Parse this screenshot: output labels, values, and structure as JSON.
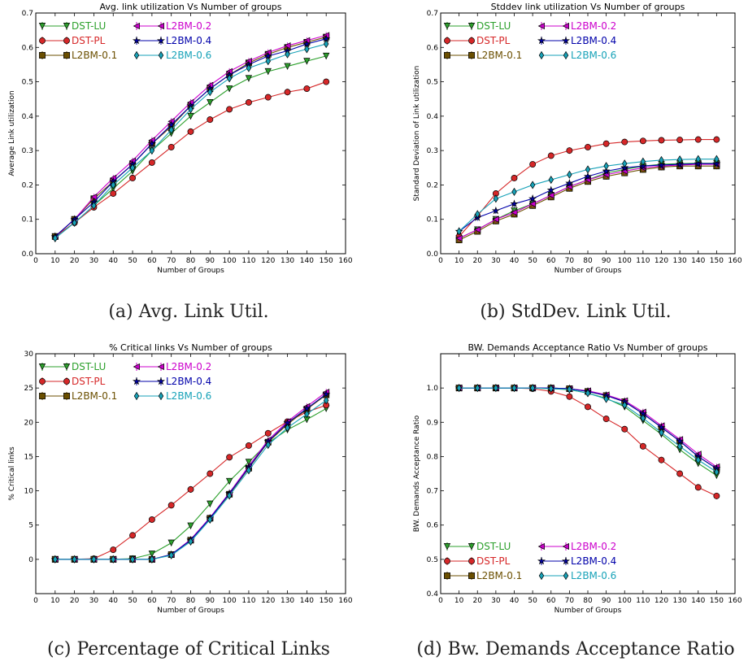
{
  "chart_data": [
    {
      "id": "a",
      "type": "line",
      "caption": "(a) Avg. Link Util.",
      "title": "Avg. link utilization Vs Number of groups",
      "xlabel": "Number of Groups",
      "ylabel": "Average Link utilization",
      "xlim": [
        0,
        160
      ],
      "ylim": [
        0,
        0.7
      ],
      "xticks": [
        "0",
        "10",
        "20",
        "30",
        "40",
        "50",
        "60",
        "70",
        "80",
        "90",
        "100",
        "110",
        "120",
        "130",
        "140",
        "150",
        "160"
      ],
      "yticks": [
        "0.0",
        "0.1",
        "0.2",
        "0.3",
        "0.4",
        "0.5",
        "0.6",
        "0.7"
      ],
      "legend_position": "top-left",
      "x": [
        10,
        20,
        30,
        40,
        50,
        60,
        70,
        80,
        90,
        100,
        110,
        120,
        130,
        140,
        150
      ],
      "series": [
        {
          "name": "DST-LU",
          "color": "#2ca02c",
          "marker": "triangle-down",
          "values": [
            0.05,
            0.09,
            0.14,
            0.19,
            0.24,
            0.3,
            0.35,
            0.4,
            0.44,
            0.48,
            0.51,
            0.53,
            0.545,
            0.56,
            0.575
          ]
        },
        {
          "name": "DST-PL",
          "color": "#d62728",
          "marker": "circle",
          "values": [
            0.05,
            0.09,
            0.135,
            0.175,
            0.22,
            0.265,
            0.31,
            0.355,
            0.39,
            0.42,
            0.44,
            0.455,
            0.47,
            0.48,
            0.5
          ]
        },
        {
          "name": "L2BM-0.1",
          "color": "#6b4f00",
          "marker": "square",
          "values": [
            0.05,
            0.1,
            0.16,
            0.21,
            0.26,
            0.32,
            0.37,
            0.43,
            0.48,
            0.52,
            0.555,
            0.58,
            0.6,
            0.615,
            0.63
          ]
        },
        {
          "name": "L2BM-0.2",
          "color": "#cc00cc",
          "marker": "triangle-left",
          "values": [
            0.05,
            0.1,
            0.165,
            0.22,
            0.27,
            0.33,
            0.385,
            0.44,
            0.49,
            0.53,
            0.56,
            0.585,
            0.605,
            0.62,
            0.635
          ]
        },
        {
          "name": "L2BM-0.4",
          "color": "#0000aa",
          "marker": "star",
          "values": [
            0.05,
            0.1,
            0.15,
            0.21,
            0.26,
            0.32,
            0.375,
            0.43,
            0.48,
            0.52,
            0.55,
            0.575,
            0.59,
            0.61,
            0.625
          ]
        },
        {
          "name": "L2BM-0.6",
          "color": "#17a2b8",
          "marker": "diamond",
          "values": [
            0.045,
            0.09,
            0.14,
            0.2,
            0.25,
            0.3,
            0.36,
            0.42,
            0.47,
            0.51,
            0.54,
            0.56,
            0.58,
            0.595,
            0.61
          ]
        }
      ]
    },
    {
      "id": "b",
      "type": "line",
      "caption": "(b) StdDev. Link Util.",
      "title": "Stddev link utilization Vs Number of groups",
      "xlabel": "Number of Groups",
      "ylabel": "Standard Deviation of Link utilization",
      "xlim": [
        0,
        160
      ],
      "ylim": [
        0,
        0.7
      ],
      "xticks": [
        "0",
        "10",
        "20",
        "30",
        "40",
        "50",
        "60",
        "70",
        "80",
        "90",
        "100",
        "110",
        "120",
        "130",
        "140",
        "150",
        "160"
      ],
      "yticks": [
        "0.0",
        "0.1",
        "0.2",
        "0.3",
        "0.4",
        "0.5",
        "0.6",
        "0.7"
      ],
      "legend_position": "top-left",
      "x": [
        10,
        20,
        30,
        40,
        50,
        60,
        70,
        80,
        90,
        100,
        110,
        120,
        130,
        140,
        150
      ],
      "series": [
        {
          "name": "DST-LU",
          "color": "#2ca02c",
          "marker": "triangle-down",
          "values": [
            0.045,
            0.07,
            0.1,
            0.125,
            0.145,
            0.17,
            0.195,
            0.215,
            0.235,
            0.245,
            0.255,
            0.26,
            0.262,
            0.263,
            0.263
          ]
        },
        {
          "name": "DST-PL",
          "color": "#d62728",
          "marker": "circle",
          "values": [
            0.05,
            0.11,
            0.175,
            0.22,
            0.26,
            0.285,
            0.3,
            0.31,
            0.32,
            0.325,
            0.328,
            0.33,
            0.331,
            0.332,
            0.332
          ]
        },
        {
          "name": "L2BM-0.1",
          "color": "#6b4f00",
          "marker": "square",
          "values": [
            0.04,
            0.065,
            0.095,
            0.115,
            0.14,
            0.165,
            0.19,
            0.21,
            0.225,
            0.235,
            0.245,
            0.252,
            0.255,
            0.255,
            0.255
          ]
        },
        {
          "name": "L2BM-0.2",
          "color": "#cc00cc",
          "marker": "triangle-left",
          "values": [
            0.045,
            0.07,
            0.1,
            0.12,
            0.145,
            0.17,
            0.195,
            0.215,
            0.23,
            0.24,
            0.25,
            0.255,
            0.258,
            0.26,
            0.26
          ]
        },
        {
          "name": "L2BM-0.4",
          "color": "#0000aa",
          "marker": "star",
          "values": [
            0.065,
            0.105,
            0.125,
            0.145,
            0.16,
            0.185,
            0.205,
            0.225,
            0.24,
            0.25,
            0.255,
            0.258,
            0.26,
            0.262,
            0.262
          ]
        },
        {
          "name": "L2BM-0.6",
          "color": "#17a2b8",
          "marker": "diamond",
          "values": [
            0.065,
            0.115,
            0.16,
            0.18,
            0.2,
            0.215,
            0.23,
            0.245,
            0.255,
            0.262,
            0.268,
            0.272,
            0.274,
            0.275,
            0.275
          ]
        }
      ]
    },
    {
      "id": "c",
      "type": "line",
      "caption": "(c) Percentage of Critical Links",
      "title": "% Critical links Vs Number of groups",
      "xlabel": "Number of Groups",
      "ylabel": "% Critical links",
      "xlim": [
        0,
        160
      ],
      "ylim": [
        -5,
        30
      ],
      "xticks": [
        "0",
        "10",
        "20",
        "30",
        "40",
        "50",
        "60",
        "70",
        "80",
        "90",
        "100",
        "110",
        "120",
        "130",
        "140",
        "150",
        "160"
      ],
      "yticks": [
        "0",
        "5",
        "10",
        "15",
        "20",
        "25",
        "30"
      ],
      "legend_position": "top-left",
      "x": [
        10,
        20,
        30,
        40,
        50,
        60,
        70,
        80,
        90,
        100,
        110,
        120,
        130,
        140,
        150
      ],
      "series": [
        {
          "name": "DST-LU",
          "color": "#2ca02c",
          "marker": "triangle-down",
          "values": [
            0,
            0,
            0,
            0,
            0.1,
            0.8,
            2.4,
            4.9,
            8.1,
            11.4,
            14.2,
            17.0,
            18.9,
            20.4,
            22.0
          ]
        },
        {
          "name": "DST-PL",
          "color": "#d62728",
          "marker": "circle",
          "values": [
            0,
            0,
            0.1,
            1.4,
            3.5,
            5.8,
            7.9,
            10.2,
            12.5,
            14.9,
            16.6,
            18.4,
            20.1,
            21.5,
            22.5
          ]
        },
        {
          "name": "L2BM-0.1",
          "color": "#6b4f00",
          "marker": "square",
          "values": [
            0,
            0,
            0,
            0,
            0,
            0,
            0.7,
            2.8,
            6.0,
            9.5,
            13.3,
            17.1,
            19.7,
            21.9,
            24.0
          ]
        },
        {
          "name": "L2BM-0.2",
          "color": "#cc00cc",
          "marker": "triangle-left",
          "values": [
            0,
            0,
            0,
            0,
            0,
            0,
            0.7,
            2.9,
            6.1,
            9.7,
            13.6,
            17.4,
            20.1,
            22.3,
            24.4
          ]
        },
        {
          "name": "L2BM-0.4",
          "color": "#0000aa",
          "marker": "star",
          "values": [
            0,
            0,
            0,
            0,
            0,
            0,
            0.7,
            2.8,
            6.0,
            9.6,
            13.4,
            17.2,
            19.9,
            22.0,
            24.1
          ]
        },
        {
          "name": "L2BM-0.6",
          "color": "#17a2b8",
          "marker": "diamond",
          "values": [
            0,
            0,
            0,
            0,
            0,
            0,
            0.6,
            2.6,
            5.8,
            9.3,
            13.0,
            16.7,
            19.2,
            21.2,
            23.2
          ]
        }
      ]
    },
    {
      "id": "d",
      "type": "line",
      "caption": "(d) Bw. Demands Acceptance Ratio",
      "title": "BW. Demands Acceptance Ratio Vs Number of groups",
      "xlabel": "Number of Groups",
      "ylabel": "BW. Demands Acceptance Ratio",
      "xlim": [
        0,
        160
      ],
      "ylim": [
        0.4,
        1.1
      ],
      "xticks": [
        "0",
        "10",
        "20",
        "30",
        "40",
        "50",
        "60",
        "70",
        "80",
        "90",
        "100",
        "110",
        "120",
        "130",
        "140",
        "150",
        "160"
      ],
      "yticks": [
        "0.4",
        "0.5",
        "0.6",
        "0.7",
        "0.8",
        "0.9",
        "1.0"
      ],
      "legend_position": "bottom-left",
      "x": [
        10,
        20,
        30,
        40,
        50,
        60,
        70,
        80,
        90,
        100,
        110,
        120,
        130,
        140,
        150
      ],
      "series": [
        {
          "name": "DST-LU",
          "color": "#2ca02c",
          "marker": "triangle-down",
          "values": [
            1.0,
            1.0,
            1.0,
            1.0,
            1.0,
            0.998,
            0.995,
            0.985,
            0.97,
            0.945,
            0.905,
            0.865,
            0.82,
            0.78,
            0.745
          ]
        },
        {
          "name": "DST-PL",
          "color": "#d62728",
          "marker": "circle",
          "values": [
            1.0,
            1.0,
            1.0,
            1.0,
            0.998,
            0.99,
            0.975,
            0.945,
            0.91,
            0.88,
            0.83,
            0.79,
            0.75,
            0.71,
            0.685
          ]
        },
        {
          "name": "L2BM-0.1",
          "color": "#6b4f00",
          "marker": "square",
          "values": [
            1.0,
            1.0,
            1.0,
            1.0,
            1.0,
            1.0,
            0.998,
            0.99,
            0.978,
            0.96,
            0.925,
            0.885,
            0.845,
            0.8,
            0.765
          ]
        },
        {
          "name": "L2BM-0.2",
          "color": "#cc00cc",
          "marker": "triangle-left",
          "values": [
            1.0,
            1.0,
            1.0,
            1.0,
            1.0,
            1.0,
            0.998,
            0.992,
            0.98,
            0.963,
            0.93,
            0.89,
            0.85,
            0.807,
            0.77
          ]
        },
        {
          "name": "L2BM-0.4",
          "color": "#0000aa",
          "marker": "star",
          "values": [
            1.0,
            1.0,
            1.0,
            1.0,
            1.0,
            1.0,
            0.998,
            0.99,
            0.978,
            0.96,
            0.925,
            0.885,
            0.845,
            0.8,
            0.765
          ]
        },
        {
          "name": "L2BM-0.6",
          "color": "#17a2b8",
          "marker": "diamond",
          "values": [
            1.0,
            1.0,
            1.0,
            1.0,
            1.0,
            0.998,
            0.996,
            0.985,
            0.968,
            0.95,
            0.912,
            0.87,
            0.83,
            0.79,
            0.755
          ]
        }
      ]
    }
  ]
}
